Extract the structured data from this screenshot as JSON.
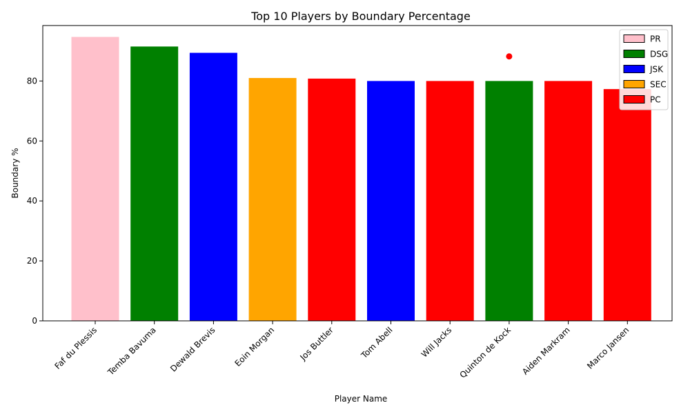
{
  "chart_data": {
    "type": "bar",
    "title": "Top 10 Players by Boundary Percentage",
    "xlabel": "Player Name",
    "ylabel": "Boundary %",
    "ylim": [
      0,
      98.5
    ],
    "yticks": [
      0,
      20,
      40,
      60,
      80
    ],
    "grid": false,
    "legend_position": "top-right",
    "categories": [
      "Faf du Plessis",
      "Temba Bavuma",
      "Dewald Brevis",
      "Eoin Morgan",
      "Jos Buttler",
      "Tom Abell",
      "Will Jacks",
      "Quinton de Kock",
      "Aiden Markram",
      "Marco Jansen"
    ],
    "values": [
      94.7,
      91.5,
      89.4,
      81.0,
      80.8,
      80.0,
      80.0,
      80.0,
      80.0,
      77.3
    ],
    "bar_teams": [
      "PR",
      "DSG",
      "JSK",
      "SEC",
      "PC",
      "JSK",
      "PC",
      "DSG",
      "PC",
      "PC"
    ],
    "teams": [
      {
        "name": "PR",
        "color": "#ffc0cb"
      },
      {
        "name": "DSG",
        "color": "#008000"
      },
      {
        "name": "JSK",
        "color": "#0000ff"
      },
      {
        "name": "SEC",
        "color": "#ffa500"
      },
      {
        "name": "PC",
        "color": "#ff0000"
      }
    ],
    "marker": {
      "category": "Quinton de Kock",
      "value": 88.2,
      "color": "#ff0000"
    }
  }
}
